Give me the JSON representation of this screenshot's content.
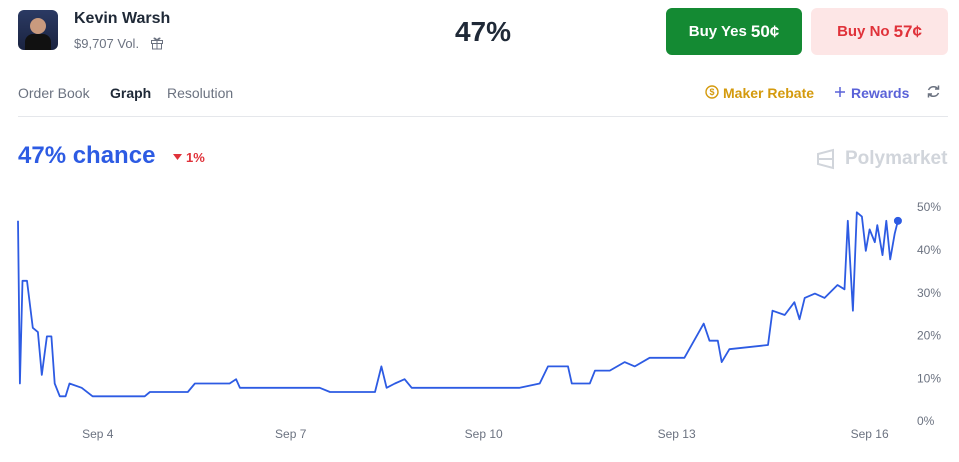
{
  "header": {
    "name": "Kevin Warsh",
    "volume": "$9,707 Vol.",
    "probability": "47%",
    "buy_yes": {
      "label": "Buy Yes",
      "price": "50¢"
    },
    "buy_no": {
      "label": "Buy No",
      "price": "57¢"
    }
  },
  "tabs": [
    "Order Book",
    "Graph",
    "Resolution"
  ],
  "actions": [
    "Maker Rebate",
    "Rewards"
  ],
  "chart_data": {
    "type": "line",
    "title": "47% chance",
    "change": "1%",
    "watermark": "Polymarket",
    "x": [
      2.76,
      2.79,
      2.83,
      2.9,
      2.99,
      3.07,
      3.13,
      3.21,
      3.28,
      3.33,
      3.41,
      3.5,
      3.56,
      3.75,
      3.92,
      4.73,
      4.81,
      5.4,
      5.51,
      6.05,
      6.15,
      6.21,
      7.45,
      7.61,
      8.31,
      8.41,
      8.49,
      8.62,
      8.77,
      8.88,
      10.56,
      10.87,
      11.0,
      11.31,
      11.37,
      11.65,
      11.73,
      11.96,
      12.19,
      12.35,
      12.58,
      13.12,
      13.42,
      13.51,
      13.64,
      13.7,
      13.82,
      14.42,
      14.49,
      14.68,
      14.83,
      14.91,
      14.99,
      15.15,
      15.3,
      15.5,
      15.61,
      15.66,
      15.74,
      15.8,
      15.88,
      15.94,
      16.0,
      16.08,
      16.12,
      16.2,
      16.26,
      16.32,
      16.39,
      16.44
    ],
    "series": [
      {
        "color": "#2d5be3",
        "values": [
          47,
          9,
          33,
          33,
          22,
          21,
          11,
          20,
          20,
          9,
          6,
          6,
          9,
          8,
          6,
          6,
          7,
          7,
          9,
          9,
          10,
          8,
          8,
          7,
          7,
          13,
          8,
          9,
          10,
          8,
          8,
          9,
          13,
          13,
          9,
          9,
          12,
          12,
          14,
          13,
          15,
          15,
          23,
          19,
          19,
          14,
          17,
          18,
          26,
          25,
          28,
          24,
          29,
          30,
          29,
          32,
          31,
          47,
          26,
          49,
          48,
          40,
          45,
          42,
          46,
          39,
          47,
          38,
          44,
          47
        ]
      }
    ],
    "xlim": [
      2.76,
      16.55
    ],
    "xticks": [
      {
        "value": 4,
        "label": "Sep 4"
      },
      {
        "value": 7,
        "label": "Sep 7"
      },
      {
        "value": 10,
        "label": "Sep 10"
      },
      {
        "value": 13,
        "label": "Sep 13"
      },
      {
        "value": 16,
        "label": "Sep 16"
      }
    ],
    "ylim": [
      0,
      50
    ],
    "yticks": [
      {
        "value": 0,
        "label": "0%"
      },
      {
        "value": 10,
        "label": "10%"
      },
      {
        "value": 20,
        "label": "20%"
      },
      {
        "value": 30,
        "label": "30%"
      },
      {
        "value": 40,
        "label": "40%"
      },
      {
        "value": 50,
        "label": "50%"
      }
    ],
    "grid": false
  }
}
